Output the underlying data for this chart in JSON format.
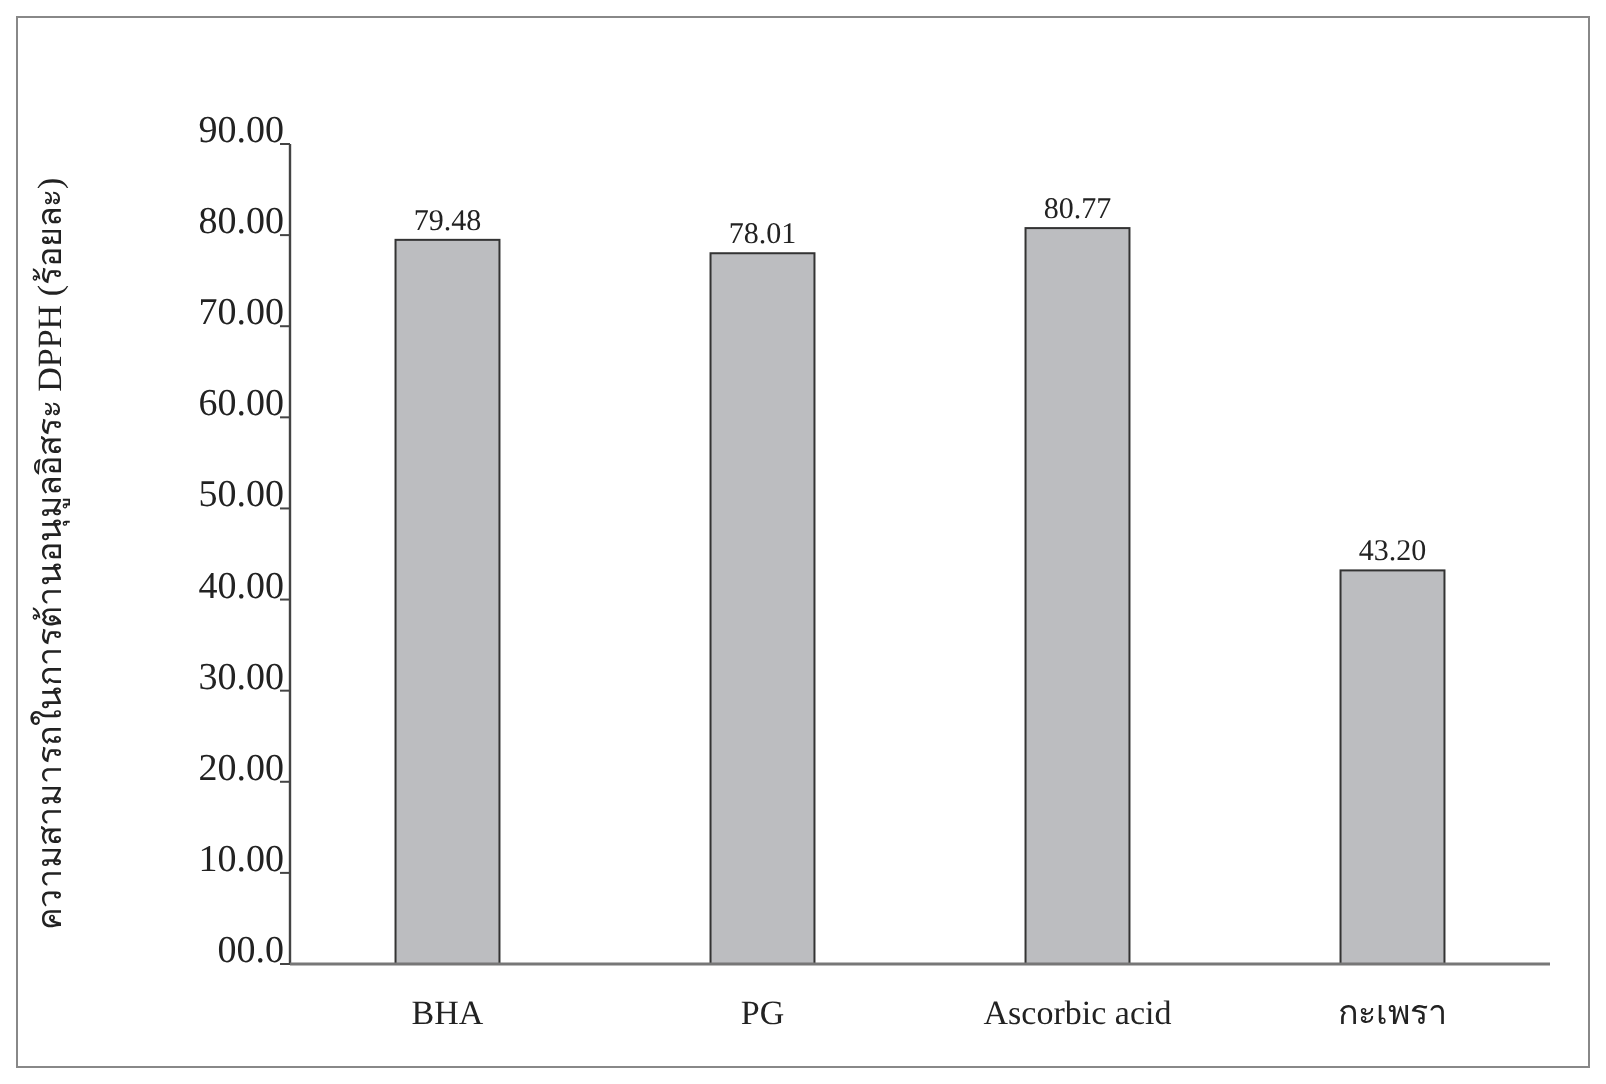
{
  "chart_data": {
    "type": "bar",
    "ylabel": "ความสามารถในการต้านอนุมูลอิสระ DPPH (ร้อยละ)",
    "categories": [
      "BHA",
      "PG",
      "Ascorbic acid",
      "กะเพรา"
    ],
    "values": [
      79.48,
      78.01,
      80.77,
      43.2
    ],
    "value_labels": [
      "79.48",
      "78.01",
      "80.77",
      "43.20"
    ],
    "color": "#bcbdc0",
    "ylim": [
      0,
      90
    ],
    "yticks": [
      {
        "value": 0,
        "label": "00.0"
      },
      {
        "value": 10,
        "label": "10.00"
      },
      {
        "value": 20,
        "label": "20.00"
      },
      {
        "value": 30,
        "label": "30.00"
      },
      {
        "value": 40,
        "label": "40.00"
      },
      {
        "value": 50,
        "label": "50.00"
      },
      {
        "value": 60,
        "label": "60.00"
      },
      {
        "value": 70,
        "label": "70.00"
      },
      {
        "value": 80,
        "label": "80.00"
      },
      {
        "value": 90,
        "label": "90.00"
      }
    ],
    "grid": false
  }
}
